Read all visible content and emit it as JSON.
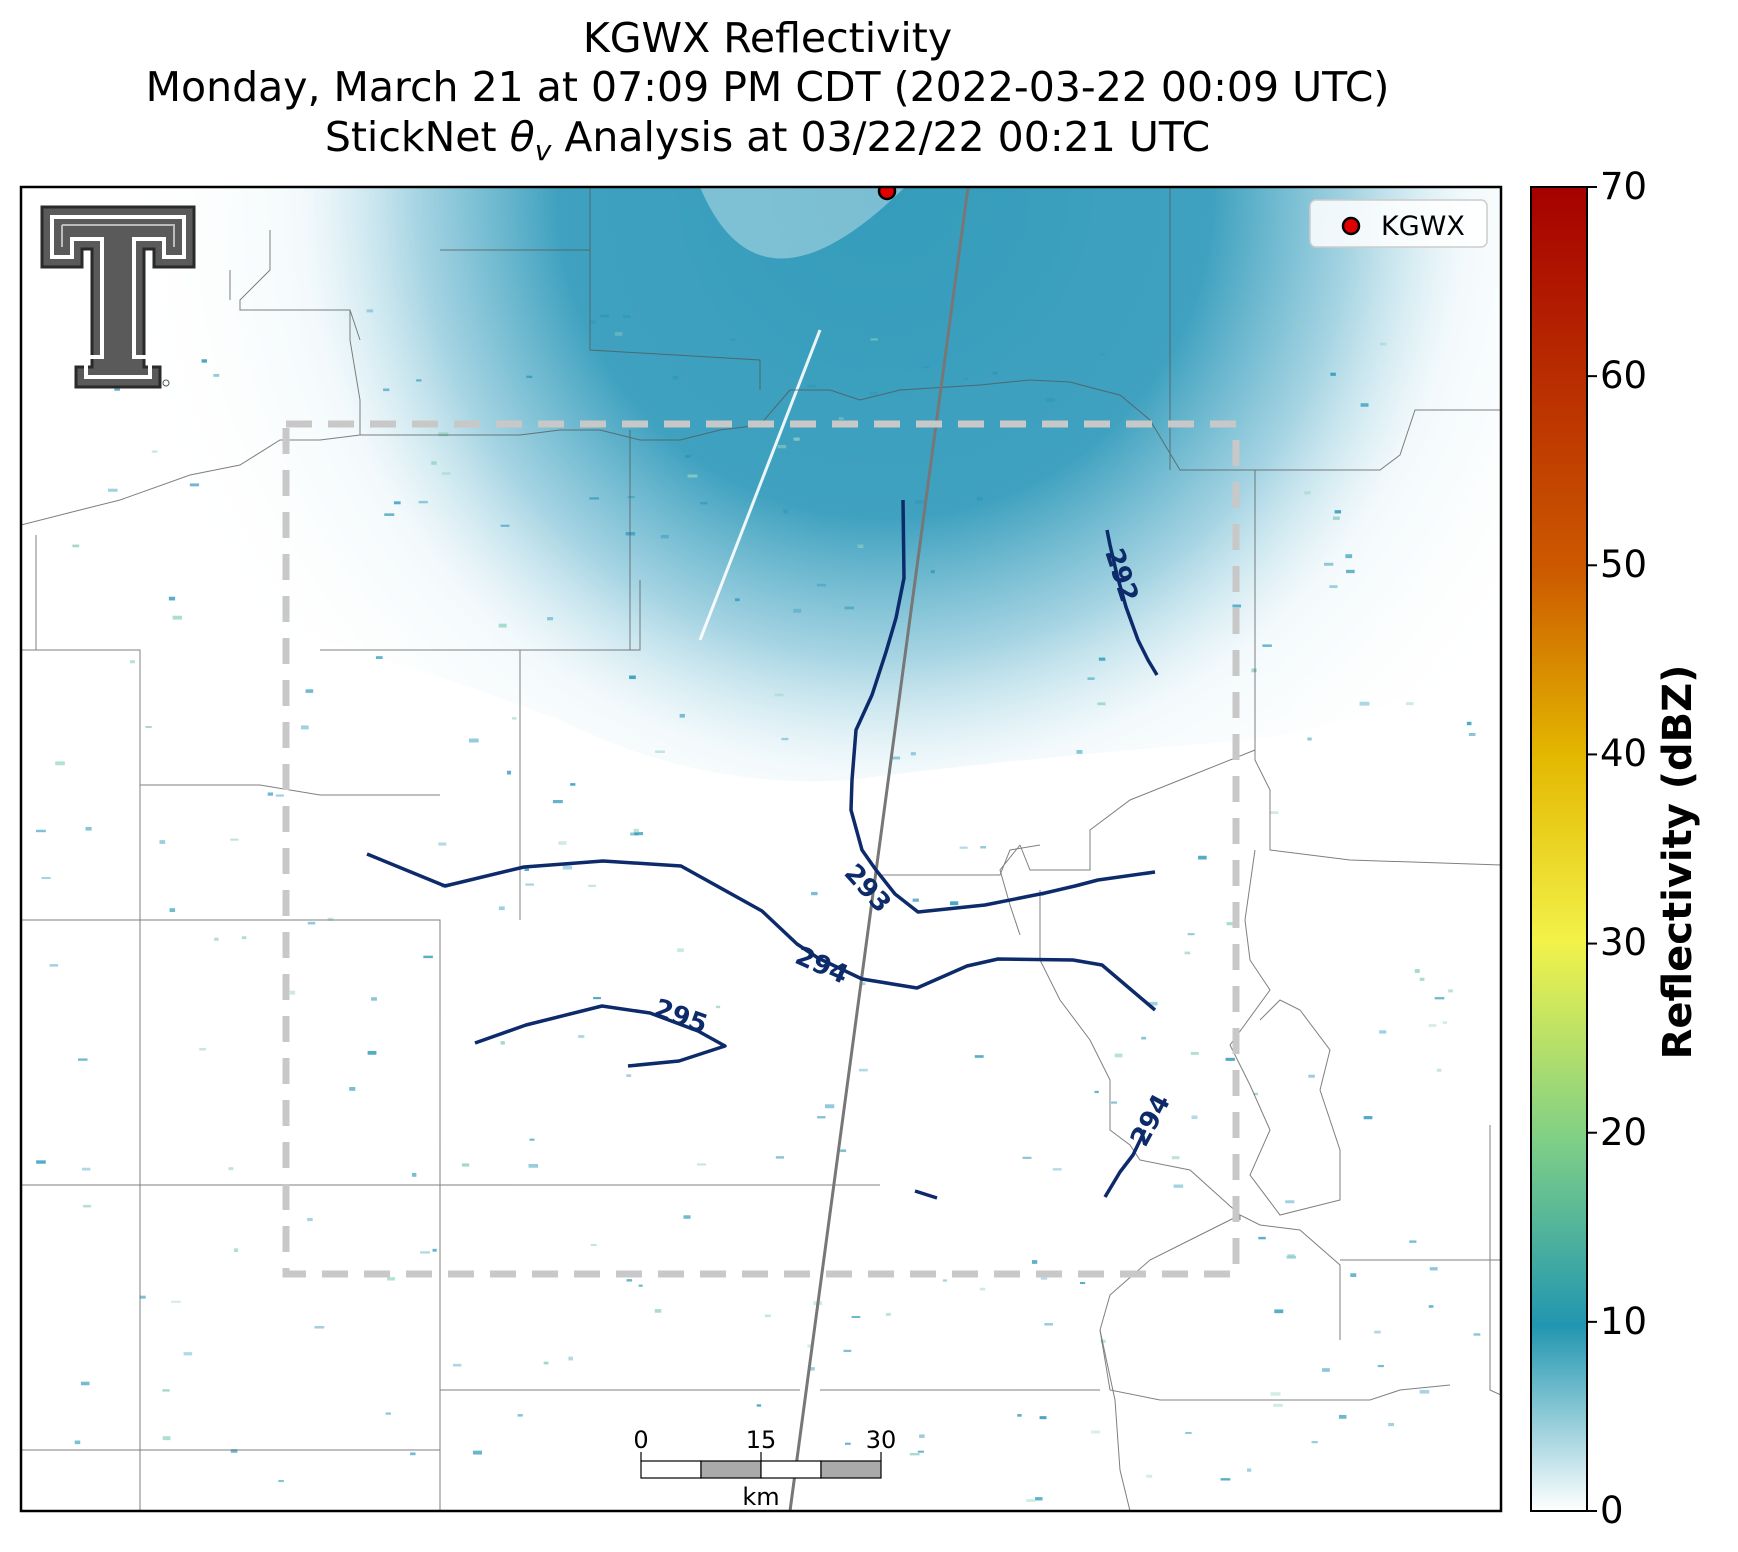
{
  "title": {
    "line1": "KGWX Reflectivity",
    "line2": "Monday, March 21 at 07:09 PM CDT (2022-03-22 00:09 UTC)",
    "line3_prefix": "StickNet ",
    "line3_symbol": "θ",
    "line3_subscript": "v",
    "line3_suffix": " Analysis at 03/22/22 00:21 UTC"
  },
  "legend": {
    "entries": [
      {
        "label": "KGWX",
        "color": "#e00000"
      }
    ]
  },
  "colorbar": {
    "label": "Reflectivity (dBZ)",
    "ticks": [
      "0",
      "10",
      "20",
      "30",
      "40",
      "50",
      "60",
      "70"
    ],
    "range": [
      0,
      70
    ],
    "stops": [
      "#ffffff",
      "#2196b0",
      "#7fcf86",
      "#f2f24a",
      "#e3b800",
      "#cc5a00",
      "#a60000"
    ]
  },
  "contours": [
    {
      "label": "292"
    },
    {
      "label": "293"
    },
    {
      "label": "294"
    },
    {
      "label": "295"
    },
    {
      "label": "294"
    }
  ],
  "scale_bar": {
    "ticks": [
      "0",
      "15",
      "30"
    ],
    "unit": "km"
  },
  "colors": {
    "contour": "#0d2a6b",
    "echo": "#2a97b8",
    "box": "#c8c8c8"
  },
  "logo": "Texas Tech double-T"
}
